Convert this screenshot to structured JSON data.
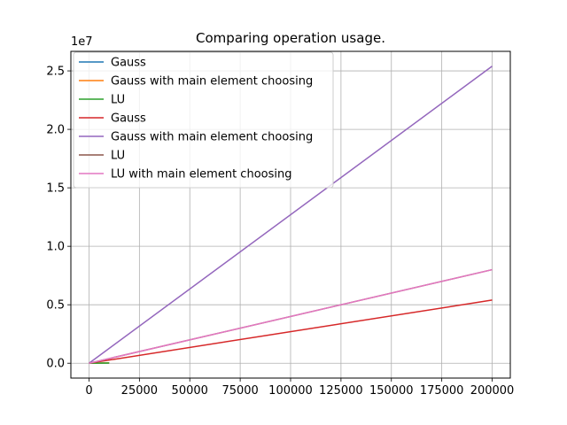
{
  "chart_data": {
    "type": "line",
    "title": "Comparing operation usage.",
    "xlabel": "",
    "ylabel": "",
    "xlim": [
      -9000,
      209000
    ],
    "ylim": [
      -1270000,
      26670000
    ],
    "y_scale_label": "1e7",
    "grid": true,
    "legend_position": "top-left",
    "x_ticks": [
      {
        "value": 0,
        "label": "0"
      },
      {
        "value": 25000,
        "label": "25000"
      },
      {
        "value": 50000,
        "label": "50000"
      },
      {
        "value": 75000,
        "label": "75000"
      },
      {
        "value": 100000,
        "label": "100000"
      },
      {
        "value": 125000,
        "label": "125000"
      },
      {
        "value": 150000,
        "label": "150000"
      },
      {
        "value": 175000,
        "label": "175000"
      },
      {
        "value": 200000,
        "label": "200000"
      }
    ],
    "y_ticks": [
      {
        "value": 0,
        "label": "0.0"
      },
      {
        "value": 5000000,
        "label": "0.5"
      },
      {
        "value": 10000000,
        "label": "1.0"
      },
      {
        "value": 15000000,
        "label": "1.5"
      },
      {
        "value": 20000000,
        "label": "2.0"
      },
      {
        "value": 25000000,
        "label": "2.5"
      }
    ],
    "series": [
      {
        "name": "Gauss",
        "color": "#1f77b4",
        "x": [
          0,
          10000
        ],
        "y": [
          0,
          20000
        ]
      },
      {
        "name": "Gauss with main element choosing",
        "color": "#ff7f0e",
        "x": [
          0,
          10000
        ],
        "y": [
          0,
          25000
        ]
      },
      {
        "name": "LU",
        "color": "#2ca02c",
        "x": [
          0,
          10000
        ],
        "y": [
          0,
          15000
        ]
      },
      {
        "name": "Gauss",
        "color": "#d62728",
        "x": [
          0,
          200000
        ],
        "y": [
          0,
          5400000
        ]
      },
      {
        "name": "Gauss with main element choosing",
        "color": "#9467bd",
        "x": [
          0,
          200000
        ],
        "y": [
          0,
          25400000
        ]
      },
      {
        "name": "LU",
        "color": "#8c564b",
        "x": [
          0,
          200000
        ],
        "y": [
          0,
          8000000
        ]
      },
      {
        "name": "LU with main element choosing",
        "color": "#e377c2",
        "x": [
          0,
          200000
        ],
        "y": [
          0,
          8000000
        ]
      }
    ]
  }
}
